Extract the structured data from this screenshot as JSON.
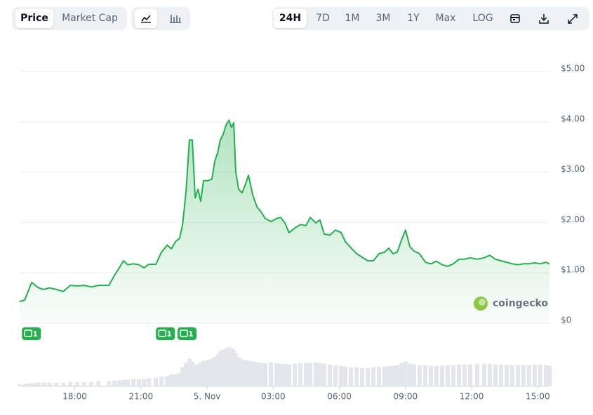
{
  "toolbar": {
    "metrics": [
      "Price",
      "Market Cap"
    ],
    "ranges": [
      "24H",
      "7D",
      "1M",
      "3M",
      "1Y",
      "Max",
      "LOG"
    ]
  },
  "watermark": "coingecko",
  "chart_data": {
    "type": "line",
    "color": "#22b14c",
    "x": [
      -8.5,
      -8.27,
      -8.11,
      -7.95,
      -7.79,
      -7.64,
      -7.41,
      -7.16,
      -6.84,
      -6.52,
      -6.2,
      -5.89,
      -5.57,
      -5.25,
      -4.93,
      -4.45,
      -4.2,
      -3.98,
      -3.79,
      -3.6,
      -3.34,
      -3.09,
      -2.86,
      -2.64,
      -2.32,
      -2.07,
      -1.81,
      -1.62,
      -1.43,
      -1.24,
      -1.11,
      -0.95,
      -0.8,
      -0.67,
      -0.54,
      -0.41,
      -0.29,
      -0.16,
      0.03,
      0.22,
      0.35,
      0.48,
      0.6,
      0.73,
      0.86,
      0.99,
      1.11,
      1.21,
      1.3,
      1.43,
      1.59,
      1.75,
      1.88,
      2.07,
      2.26,
      2.45,
      2.64,
      2.9,
      3.15,
      3.34,
      3.53,
      3.72,
      3.98,
      4.23,
      4.49,
      4.68,
      4.93,
      5.12,
      5.31,
      5.57,
      5.82,
      6.08,
      6.27,
      6.52,
      6.78,
      7.03,
      7.29,
      7.54,
      7.8,
      8.05,
      8.24,
      8.43,
      8.62,
      8.81,
      9.0,
      9.2,
      9.39,
      9.64,
      9.9,
      10.15,
      10.4,
      10.66,
      10.91,
      11.17,
      11.42,
      11.68,
      11.93,
      12.25,
      12.57,
      12.82,
      13.08,
      13.33,
      13.59,
      13.84,
      14.1,
      14.35,
      14.6,
      14.86,
      15.11,
      15.37,
      15.53
    ],
    "values": [
      0.43,
      0.46,
      0.64,
      0.81,
      0.75,
      0.7,
      0.67,
      0.7,
      0.67,
      0.63,
      0.75,
      0.74,
      0.75,
      0.72,
      0.75,
      0.75,
      0.95,
      1.1,
      1.24,
      1.16,
      1.18,
      1.16,
      1.1,
      1.17,
      1.17,
      1.41,
      1.55,
      1.48,
      1.62,
      1.69,
      1.96,
      2.63,
      3.64,
      3.64,
      2.49,
      2.66,
      2.42,
      2.83,
      2.83,
      2.86,
      3.22,
      3.38,
      3.64,
      3.75,
      3.94,
      4.03,
      3.89,
      3.98,
      3.01,
      2.66,
      2.59,
      2.77,
      2.94,
      2.55,
      2.31,
      2.21,
      2.08,
      2.02,
      2.08,
      2.1,
      1.99,
      1.8,
      1.89,
      1.96,
      1.94,
      2.1,
      1.99,
      2.05,
      1.77,
      1.75,
      1.85,
      1.8,
      1.62,
      1.5,
      1.38,
      1.31,
      1.24,
      1.24,
      1.38,
      1.41,
      1.49,
      1.38,
      1.41,
      1.64,
      1.85,
      1.52,
      1.43,
      1.38,
      1.21,
      1.18,
      1.23,
      1.16,
      1.13,
      1.18,
      1.27,
      1.27,
      1.3,
      1.27,
      1.3,
      1.35,
      1.27,
      1.24,
      1.21,
      1.18,
      1.16,
      1.18,
      1.18,
      1.2,
      1.18,
      1.21,
      1.18
    ],
    "volume": [
      3,
      3,
      4,
      4,
      4,
      5,
      5,
      5,
      5,
      5,
      6,
      6,
      6,
      6,
      7,
      7,
      8,
      8,
      9,
      9,
      10,
      10,
      10,
      11,
      12,
      13,
      14,
      16,
      17,
      18,
      26,
      32,
      38,
      34,
      30,
      30,
      33,
      35,
      36,
      38,
      40,
      44,
      48,
      50,
      52,
      54,
      52,
      50,
      45,
      40,
      37,
      36,
      35,
      34,
      33,
      32,
      32,
      33,
      32,
      31,
      31,
      30,
      31,
      32,
      32,
      32,
      33,
      32,
      31,
      30,
      29,
      28,
      27,
      26,
      26,
      25,
      25,
      26,
      27,
      27,
      28,
      28,
      29,
      32,
      34,
      31,
      30,
      29,
      29,
      28,
      28,
      28,
      29,
      29,
      30,
      30,
      30,
      31,
      31,
      31,
      30,
      30,
      30,
      29,
      29,
      29,
      29,
      30,
      30,
      29,
      28
    ],
    "volume_color": "#e3e6ea",
    "xlim": [
      -8.5,
      15.53
    ],
    "xticks": [
      {
        "value": -6,
        "label": "18:00"
      },
      {
        "value": -3,
        "label": "21:00"
      },
      {
        "value": 0,
        "label": "5. Nov"
      },
      {
        "value": 3,
        "label": "03:00"
      },
      {
        "value": 6,
        "label": "06:00"
      },
      {
        "value": 9,
        "label": "09:00"
      },
      {
        "value": 12,
        "label": "12:00"
      },
      {
        "value": 15,
        "label": "15:00"
      }
    ],
    "ylim": [
      0,
      5
    ],
    "yticks": [
      {
        "value": 0,
        "label": "$0"
      },
      {
        "value": 1,
        "label": "$1.00"
      },
      {
        "value": 2,
        "label": "$2.00"
      },
      {
        "value": 3,
        "label": "$3.00"
      },
      {
        "value": 4,
        "label": "$4.00"
      },
      {
        "value": 5,
        "label": "$5.00"
      }
    ],
    "grid": true,
    "events": [
      {
        "x": -8.08,
        "count": 1
      },
      {
        "x": -2.0,
        "count": 1
      },
      {
        "x": -1.02,
        "count": 1
      }
    ]
  }
}
